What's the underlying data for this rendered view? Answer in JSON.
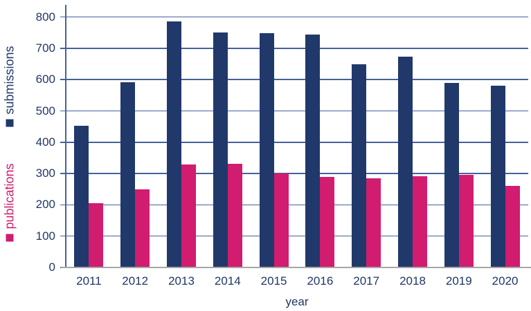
{
  "chart_data": {
    "type": "bar",
    "title": "",
    "categories": [
      "2011",
      "2012",
      "2013",
      "2014",
      "2015",
      "2016",
      "2017",
      "2018",
      "2019",
      "2020"
    ],
    "series": [
      {
        "name": "submissions",
        "color": "#21386B",
        "values": [
          452,
          591,
          785,
          750,
          749,
          744,
          650,
          674,
          589,
          580
        ]
      },
      {
        "name": "publications",
        "color": "#D11C6F",
        "values": [
          205,
          250,
          330,
          331,
          300,
          289,
          284,
          292,
          296,
          260
        ]
      }
    ],
    "xlabel": "year",
    "y_axis": {
      "min": 0,
      "max": 800,
      "tick_step": 100
    },
    "grid": "horizontal",
    "legend_position": "left-vertical-axis-titles"
  },
  "colors": {
    "submissions": "#21386B",
    "publications": "#D11C6F",
    "gridline": "#44619E",
    "axis_spine": "#44619E",
    "x_axis_line": "#A6A6A6",
    "text": "#1F3864"
  }
}
